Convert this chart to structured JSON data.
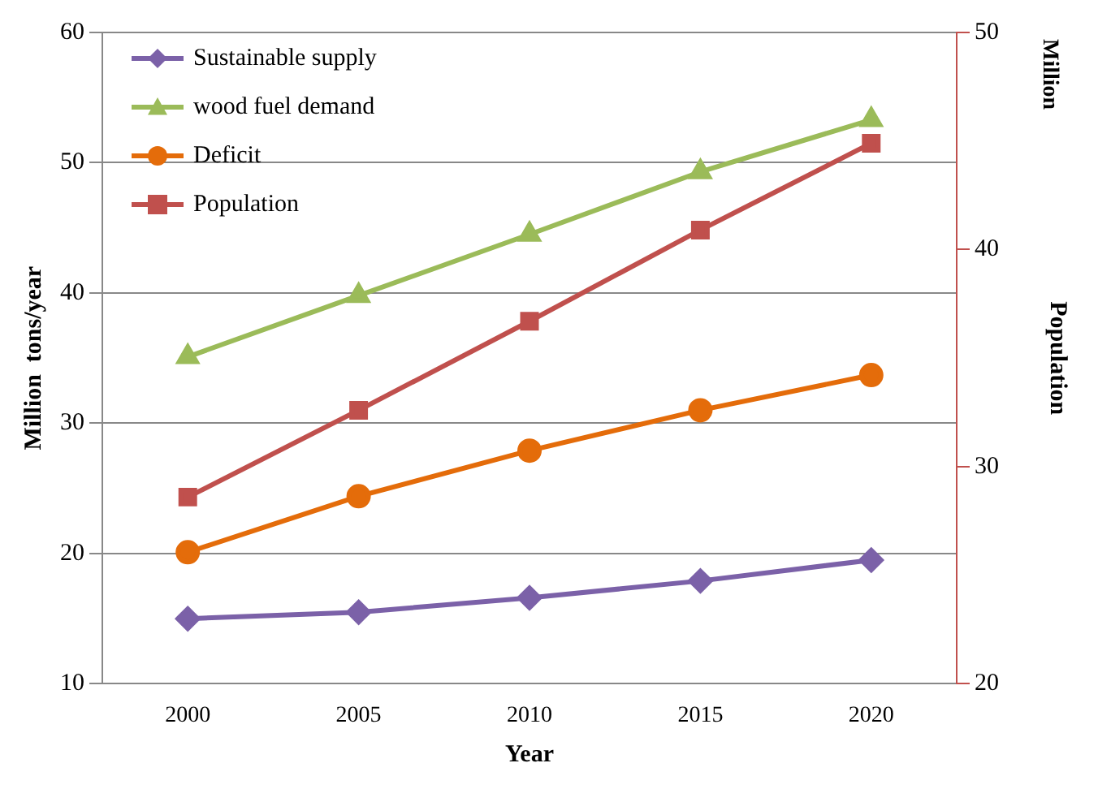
{
  "chart_data": {
    "type": "line",
    "xlabel": "Year",
    "ylabel": "Million  tons/year",
    "y2label": "Population",
    "annotations": [
      "Million"
    ],
    "categories": [
      "2000",
      "2005",
      "2010",
      "2015",
      "2020"
    ],
    "series": [
      {
        "name": "Sustainable supply",
        "color": "#7b61a8",
        "marker": "diamond",
        "values": [
          15.0,
          15.5,
          16.6,
          17.9,
          19.5
        ]
      },
      {
        "name": "wood fuel demand",
        "color": "#9bbb59",
        "marker": "triangle",
        "values": [
          35.1,
          39.8,
          44.5,
          49.3,
          53.3
        ]
      },
      {
        "name": "Deficit",
        "color": "#e46c0a",
        "marker": "circle",
        "values": [
          20.1,
          24.4,
          27.9,
          31.0,
          33.7
        ]
      },
      {
        "name": "Population",
        "color": "#c0504d",
        "marker": "square",
        "axis": "y2",
        "values": [
          28.6,
          32.6,
          36.7,
          40.9,
          44.9
        ]
      }
    ],
    "ylim": [
      10,
      60
    ],
    "yticks": [
      10,
      20,
      30,
      40,
      50,
      60
    ],
    "y2lim": [
      20,
      50
    ],
    "y2ticks": [
      20,
      30,
      40,
      50
    ],
    "grid": "y",
    "legend": "top left"
  }
}
